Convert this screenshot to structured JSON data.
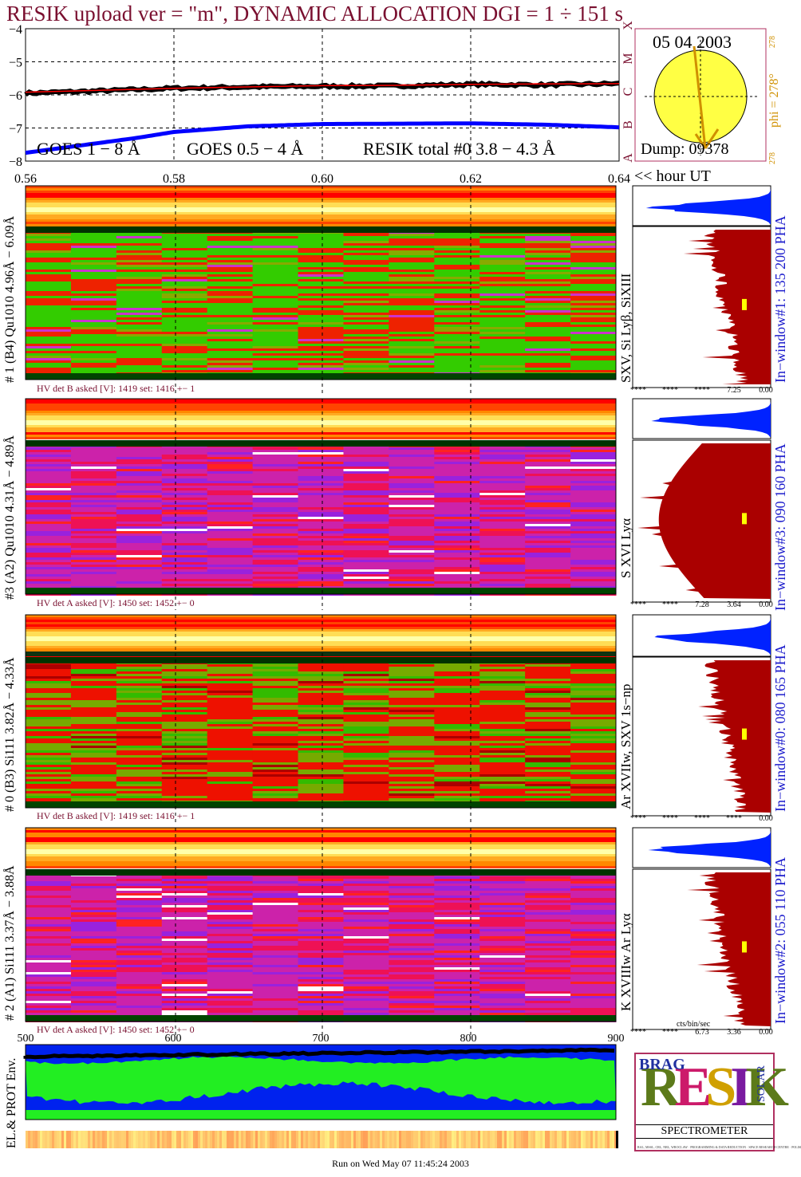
{
  "title": "RESIK upload ver = \"m\", DYNAMIC ALLOCATION  DGI =   1 ÷ 151 s",
  "footer": "Run on Wed May 07 11:45:24 2003",
  "colors": {
    "goes_long": "#ff0000",
    "goes_short": "#0000ff",
    "resik_total": "#000000",
    "title": "#7a1030",
    "histogram": "#aa0000",
    "sun": "#ffff44"
  },
  "chart_data": [
    {
      "type": "line",
      "title": "",
      "xlabel": "<< hour UT",
      "x_ticks": [
        "0.56",
        "0.58",
        "0.60",
        "0.62",
        "0.64"
      ],
      "xlim": [
        0.56,
        0.64
      ],
      "y_ticks": [
        "−4",
        "−5",
        "−6",
        "−7",
        "−8"
      ],
      "ylim": [
        -8,
        -4
      ],
      "class_labels": [
        "A",
        "B",
        "C",
        "M",
        "X"
      ],
      "grid": true,
      "series": [
        {
          "name": "GOES 1 − 8 Å",
          "x": [
            0.56,
            0.57,
            0.58,
            0.59,
            0.6,
            0.61,
            0.62,
            0.63,
            0.64
          ],
          "values": [
            -5.92,
            -5.86,
            -5.8,
            -5.76,
            -5.72,
            -5.71,
            -5.68,
            -5.67,
            -5.66
          ]
        },
        {
          "name": "GOES 0.5 − 4 Å",
          "x": [
            0.56,
            0.565,
            0.57,
            0.575,
            0.58,
            0.59,
            0.6,
            0.61,
            0.62,
            0.63,
            0.64
          ],
          "values": [
            -7.75,
            -7.6,
            -7.45,
            -7.3,
            -7.12,
            -6.95,
            -6.88,
            -6.87,
            -6.86,
            -6.9,
            -6.98
          ]
        },
        {
          "name": "RESIK total #0  3.8 − 4.3 Å",
          "x": [
            0.56,
            0.57,
            0.58,
            0.59,
            0.6,
            0.61,
            0.62,
            0.63,
            0.64
          ],
          "values": [
            -5.95,
            -5.88,
            -5.8,
            -5.76,
            -5.74,
            -5.73,
            -5.68,
            -5.7,
            -5.66
          ]
        }
      ]
    },
    {
      "type": "heatmap",
      "title": "",
      "xlabel": "",
      "x_ticks": [
        "500",
        "600",
        "700",
        "800",
        "900"
      ],
      "xlim": [
        500,
        900
      ],
      "panels": [
        {
          "ylabel": "# 1 (B4) Qu1010 4.96Å − 6.09Å",
          "lines": "SXV, Si Lyβ, SiXIII",
          "hv": "HV det B asked [V]:  1419 set:  1416 +−    1",
          "window": "In−window#1:  135 200 PHA",
          "spectrum_theme": "green",
          "hist_ticks": [
            "****",
            "****",
            "****",
            "7.25",
            "0.00"
          ]
        },
        {
          "ylabel": "#3 (A2) Qu1010  4.31Å − 4.89Å",
          "lines": "S XVI Lyα",
          "hv": "HV det A asked [V]:  1450 set:  1452 +−    0",
          "window": "In−window#3:  090 160 PHA",
          "spectrum_theme": "magenta",
          "hist_ticks": [
            "****",
            "****",
            "7.28",
            "3.64",
            "0.00"
          ]
        },
        {
          "ylabel": "# 0 (B3) Si111  3.82Å − 4.33Å",
          "lines": "Ar XVIIw, SXV 1s−np",
          "hv": "HV det B asked [V]:  1419 set:  1416 +−    1",
          "window": "In−window#0:  080 165 PHA",
          "spectrum_theme": "red-green",
          "hist_ticks": [
            "****",
            "****",
            "****",
            "****",
            "0.00"
          ]
        },
        {
          "ylabel": "# 2 (A1) Si111  3.37Å − 3.88Å",
          "lines": "K XVIIIw  Ar Lyα",
          "hv": "HV det A asked [V]:  1450 set:  1452 +−    0",
          "window": "In−window#2:  055 110 PHA",
          "spectrum_theme": "magenta",
          "hist_ticks": [
            "****",
            "****",
            "6.73",
            "3.36",
            "0.00"
          ]
        }
      ],
      "hist_xlabel": "cts/bin/sec"
    }
  ],
  "legend": {
    "goes_long": "GOES 1 − 8 Å",
    "goes_short": "GOES 0.5 − 4 Å",
    "resik": "RESIK total #0  3.8 − 4.3 Å"
  },
  "sun": {
    "date": "05 04 2003",
    "dump": "Dump: 09378",
    "phi": "phi = 278°",
    "phi_small_top": "278",
    "phi_small_bottom": "278"
  },
  "env_label": "EL.& PROT Env.",
  "logo": {
    "letters": "RESIK",
    "small": "BRAG",
    "side": "SOLAR",
    "bottom": "SPECTROMETER",
    "fine": "RAL, MSSL, CRL, NRL, WROCLAW · PROGRAMMING & DATA REDUCTION · SPACE RESEARCH CENTRE · POLISH ACADEMY OF SCIENCES"
  }
}
